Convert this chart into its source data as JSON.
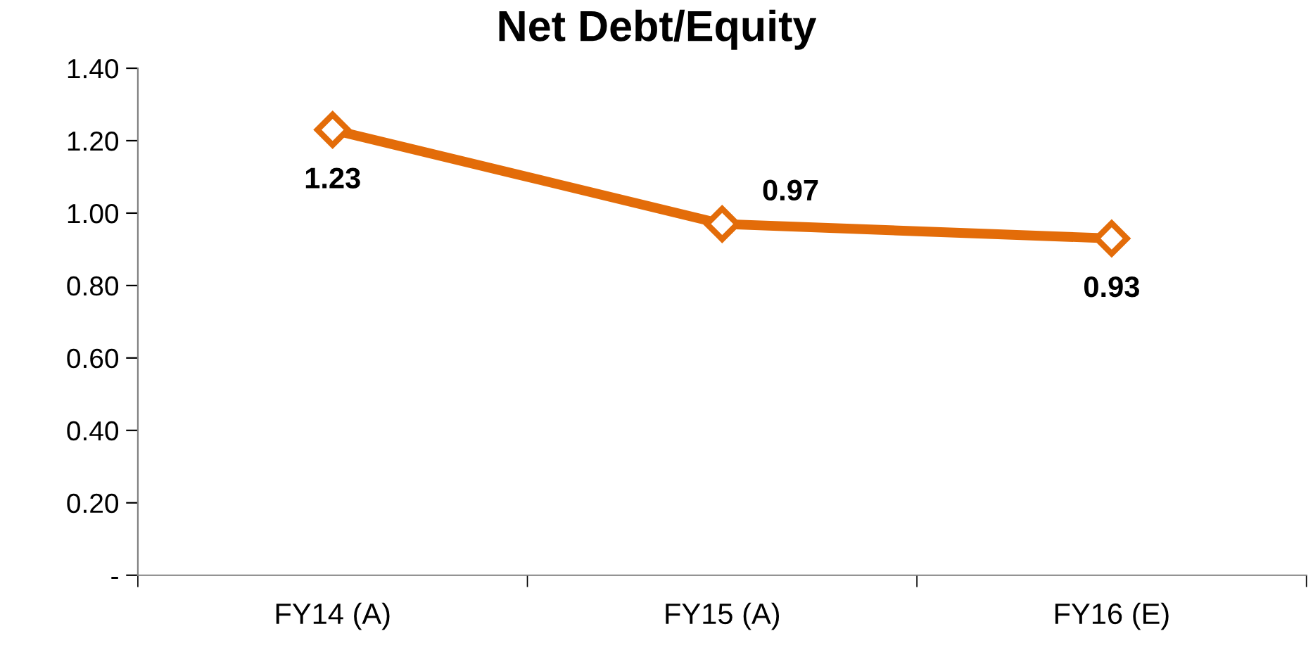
{
  "chart_data": {
    "type": "line",
    "title": "Net Debt/Equity",
    "categories": [
      "FY14 (A)",
      "FY15 (A)",
      "FY16 (E)"
    ],
    "series": [
      {
        "color": "#e36c09",
        "values": [
          1.23,
          0.97,
          0.93
        ]
      }
    ],
    "ylim": [
      0,
      1.4
    ],
    "yticks": [
      {
        "value": 0,
        "label": "-"
      },
      {
        "value": 0.2,
        "label": "0.20"
      },
      {
        "value": 0.4,
        "label": "0.40"
      },
      {
        "value": 0.6,
        "label": "0.60"
      },
      {
        "value": 0.8,
        "label": "0.80"
      },
      {
        "value": 1.0,
        "label": "1.00"
      },
      {
        "value": 1.2,
        "label": "1.20"
      },
      {
        "value": 1.4,
        "label": "1.40"
      }
    ],
    "marker": "diamond",
    "line_style": "solid",
    "grid": false,
    "data_labels": true
  }
}
